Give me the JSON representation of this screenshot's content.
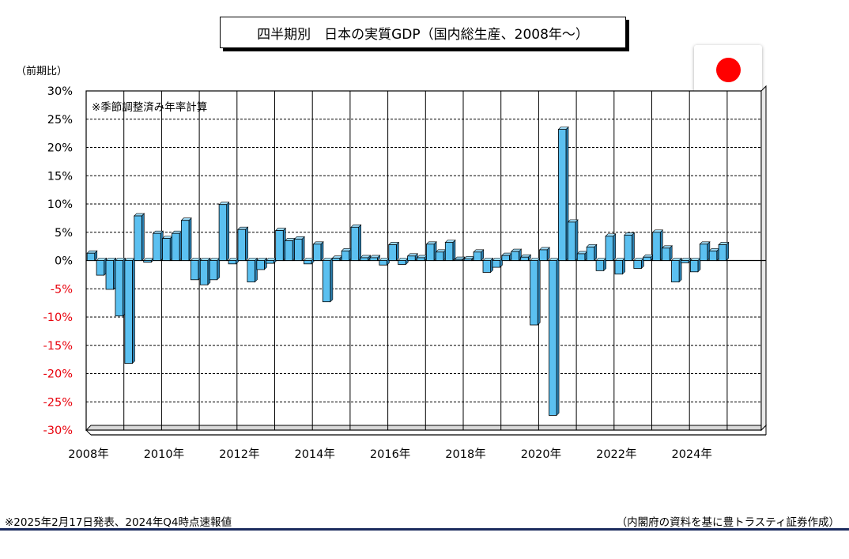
{
  "chart_data": {
    "type": "bar",
    "title": "四半期別　日本の実質GDP（国内総生産、2008年～）",
    "ylabel": "（前期比）",
    "note": "※季節調整済み年率計算",
    "ylim": [
      -30,
      30
    ],
    "y_ticks": [
      30,
      25,
      20,
      15,
      10,
      5,
      0,
      -5,
      -10,
      -15,
      -20,
      -25,
      -30
    ],
    "y_tick_labels": [
      "30%",
      "25%",
      "20%",
      "15%",
      "10%",
      "5%",
      "0%",
      "-5%",
      "-10%",
      "-15%",
      "-20%",
      "-25%",
      "-30%"
    ],
    "x_tick_labels": [
      "2008年",
      "2010年",
      "2012年",
      "2014年",
      "2016年",
      "2018年",
      "2020年",
      "2022年",
      "2024年"
    ],
    "grid": true,
    "bar_color": "#5bc0f0",
    "negative_tick_color": "#e8000b",
    "categories": [
      "2008Q1",
      "2008Q2",
      "2008Q3",
      "2008Q4",
      "2009Q1",
      "2009Q2",
      "2009Q3",
      "2009Q4",
      "2010Q1",
      "2010Q2",
      "2010Q3",
      "2010Q4",
      "2011Q1",
      "2011Q2",
      "2011Q3",
      "2011Q4",
      "2012Q1",
      "2012Q2",
      "2012Q3",
      "2012Q4",
      "2013Q1",
      "2013Q2",
      "2013Q3",
      "2013Q4",
      "2014Q1",
      "2014Q2",
      "2014Q3",
      "2014Q4",
      "2015Q1",
      "2015Q2",
      "2015Q3",
      "2015Q4",
      "2016Q1",
      "2016Q2",
      "2016Q3",
      "2016Q4",
      "2017Q1",
      "2017Q2",
      "2017Q3",
      "2017Q4",
      "2018Q1",
      "2018Q2",
      "2018Q3",
      "2018Q4",
      "2019Q1",
      "2019Q2",
      "2019Q3",
      "2019Q4",
      "2020Q1",
      "2020Q2",
      "2020Q3",
      "2020Q4",
      "2021Q1",
      "2021Q2",
      "2021Q3",
      "2021Q4",
      "2022Q1",
      "2022Q2",
      "2022Q3",
      "2022Q4",
      "2023Q1",
      "2023Q2",
      "2023Q3",
      "2023Q4",
      "2024Q1",
      "2024Q2",
      "2024Q3",
      "2024Q4"
    ],
    "values": [
      1.3,
      -2.6,
      -5.1,
      -9.8,
      -18.2,
      7.9,
      -0.3,
      4.8,
      3.9,
      4.8,
      7.1,
      -3.4,
      -4.3,
      -3.4,
      9.9,
      -0.6,
      5.5,
      -3.8,
      -1.6,
      -0.5,
      5.3,
      3.5,
      3.8,
      -0.6,
      2.9,
      -7.3,
      0.4,
      1.7,
      5.9,
      0.5,
      0.5,
      -0.8,
      2.8,
      -0.7,
      0.8,
      0.5,
      2.9,
      1.5,
      3.2,
      0.2,
      0.3,
      1.5,
      -2.1,
      -1.2,
      0.9,
      1.6,
      0.6,
      -11.4,
      1.9,
      -27.4,
      23.2,
      6.8,
      1.2,
      2.4,
      -1.8,
      4.3,
      -2.4,
      4.5,
      -1.4,
      0.6,
      5.0,
      2.2,
      -3.8,
      -0.4,
      -2.0,
      2.9,
      1.7,
      2.8
    ]
  },
  "footer": {
    "left": "※2025年2月17日発表、2024年Q4時点速報値",
    "right": "（内閣府の資料を基に豊トラスティ証券作成）"
  },
  "flag": "japan-flag-icon"
}
